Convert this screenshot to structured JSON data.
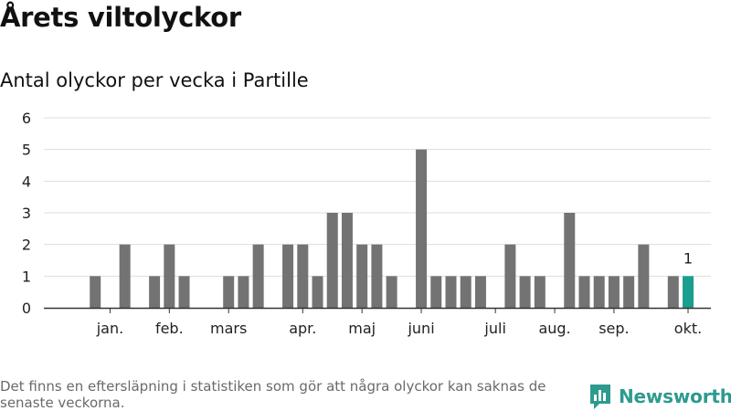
{
  "header": {
    "title": "Årets viltolyckor",
    "subtitle": "Antal olyckor per vecka i Partille"
  },
  "footer": {
    "note": "Det finns en eftersläpning i statistiken som gör att några olyckor kan saknas de senaste veckorna.",
    "brand": "Newsworthy",
    "brand_icon": "newsworthy-logo-icon"
  },
  "colors": {
    "bar": "#737373",
    "highlight": "#1a9e8f",
    "grid": "#dddddd",
    "axis": "#333333",
    "brand": "#2d9a8f"
  },
  "chart_data": {
    "type": "bar",
    "x": [
      1,
      2,
      3,
      4,
      5,
      6,
      7,
      8,
      9,
      10,
      11,
      12,
      13,
      14,
      15,
      16,
      17,
      18,
      19,
      20,
      21,
      22,
      23,
      24,
      25,
      26,
      27,
      28,
      29,
      30,
      31,
      32,
      33,
      34,
      35,
      36,
      37,
      38,
      39,
      40,
      41,
      42
    ],
    "values": [
      0,
      1,
      0,
      2,
      0,
      1,
      2,
      1,
      0,
      0,
      1,
      1,
      2,
      0,
      2,
      2,
      1,
      3,
      3,
      2,
      2,
      1,
      0,
      5,
      1,
      1,
      1,
      1,
      0,
      2,
      1,
      1,
      0,
      3,
      1,
      1,
      1,
      1,
      2,
      0,
      1,
      1
    ],
    "highlight_index": 41,
    "highlight_label": "1",
    "yticks": [
      "0",
      "1",
      "2",
      "3",
      "4",
      "5",
      "6"
    ],
    "ylim": [
      0,
      6
    ],
    "months": [
      {
        "label": "jan.",
        "week": 3
      },
      {
        "label": "feb.",
        "week": 7
      },
      {
        "label": "mars",
        "week": 11
      },
      {
        "label": "apr.",
        "week": 16
      },
      {
        "label": "maj",
        "week": 20
      },
      {
        "label": "juni",
        "week": 24
      },
      {
        "label": "juli",
        "week": 29
      },
      {
        "label": "aug.",
        "week": 33
      },
      {
        "label": "sep.",
        "week": 37
      },
      {
        "label": "okt.",
        "week": 42
      }
    ],
    "grid": true,
    "legend": "none"
  }
}
